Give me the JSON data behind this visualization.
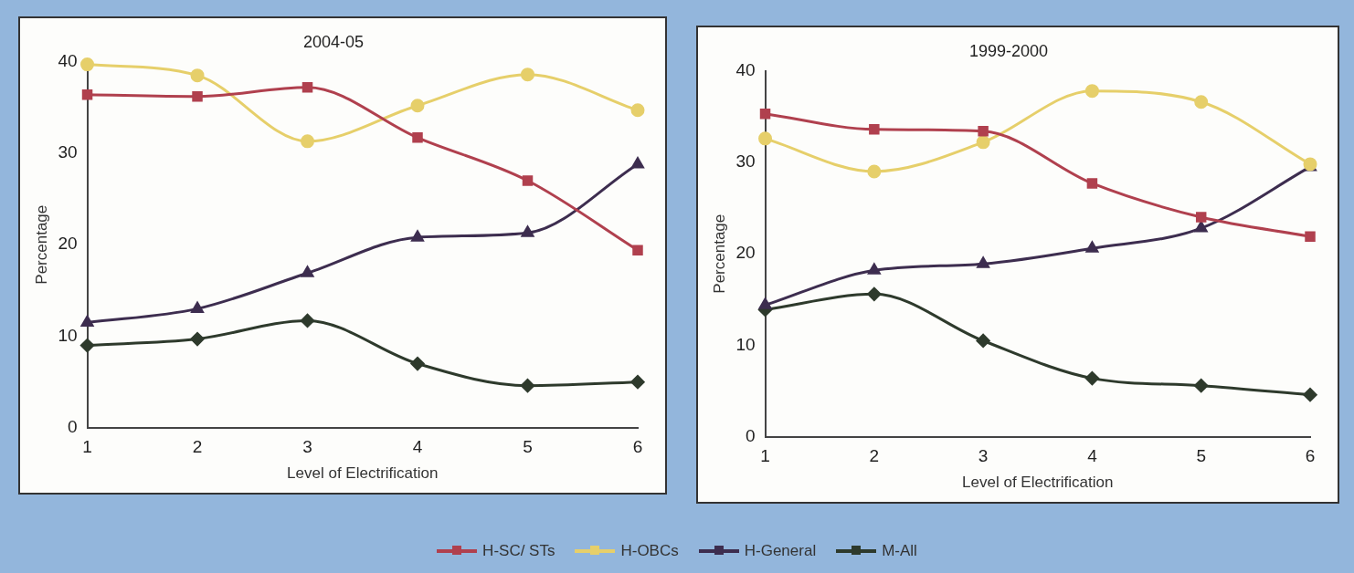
{
  "chart_data": [
    {
      "type": "line",
      "title": "2004-05",
      "xlabel": "Level of Electrification",
      "ylabel": "Percentage",
      "x": [
        1,
        2,
        3,
        4,
        5,
        6
      ],
      "xlim": [
        1,
        6
      ],
      "xticks": [
        1,
        2,
        3,
        4,
        5,
        6
      ],
      "ylim": [
        0,
        40
      ],
      "yticks": [
        0,
        10,
        20,
        30,
        40
      ],
      "grid": false,
      "legend": "bottom",
      "series": [
        {
          "name": "H-SC/ STs",
          "color": "#b0404e",
          "marker": "square",
          "values": [
            36.4,
            36.2,
            37.2,
            31.7,
            27,
            19.4
          ]
        },
        {
          "name": "H-OBCs",
          "color": "#e6cf6a",
          "marker": "circle",
          "values": [
            39.7,
            38.5,
            31.3,
            35.2,
            38.6,
            34.7
          ]
        },
        {
          "name": "H-General",
          "color": "#3d2d4f",
          "marker": "triangle",
          "values": [
            11.5,
            13,
            16.9,
            20.8,
            21.3,
            28.8
          ]
        },
        {
          "name": "M-All",
          "color": "#2e3a2c",
          "marker": "diamond",
          "values": [
            9,
            9.7,
            11.7,
            7,
            4.6,
            5
          ]
        }
      ]
    },
    {
      "type": "line",
      "title": "1999-2000",
      "xlabel": "Level of Electrification",
      "ylabel": "Percentage",
      "x": [
        1,
        2,
        3,
        4,
        5,
        6
      ],
      "xlim": [
        1,
        6
      ],
      "xticks": [
        1,
        2,
        3,
        4,
        5,
        6
      ],
      "ylim": [
        0,
        40
      ],
      "yticks": [
        0,
        10,
        20,
        30,
        40
      ],
      "grid": false,
      "series": [
        {
          "color": "#b0404e",
          "marker": "square",
          "values": [
            35.3,
            33.6,
            33.4,
            27.7,
            24,
            21.9
          ]
        },
        {
          "color": "#e6cf6a",
          "marker": "circle",
          "values": [
            32.6,
            29,
            32.2,
            37.8,
            36.6,
            29.8
          ]
        },
        {
          "color": "#3d2d4f",
          "marker": "triangle",
          "values": [
            14.4,
            18.2,
            18.9,
            20.6,
            22.8,
            29.5
          ]
        },
        {
          "color": "#2e3a2c",
          "marker": "diamond",
          "values": [
            13.9,
            15.6,
            10.5,
            6.4,
            5.6,
            4.6
          ]
        }
      ]
    }
  ]
}
